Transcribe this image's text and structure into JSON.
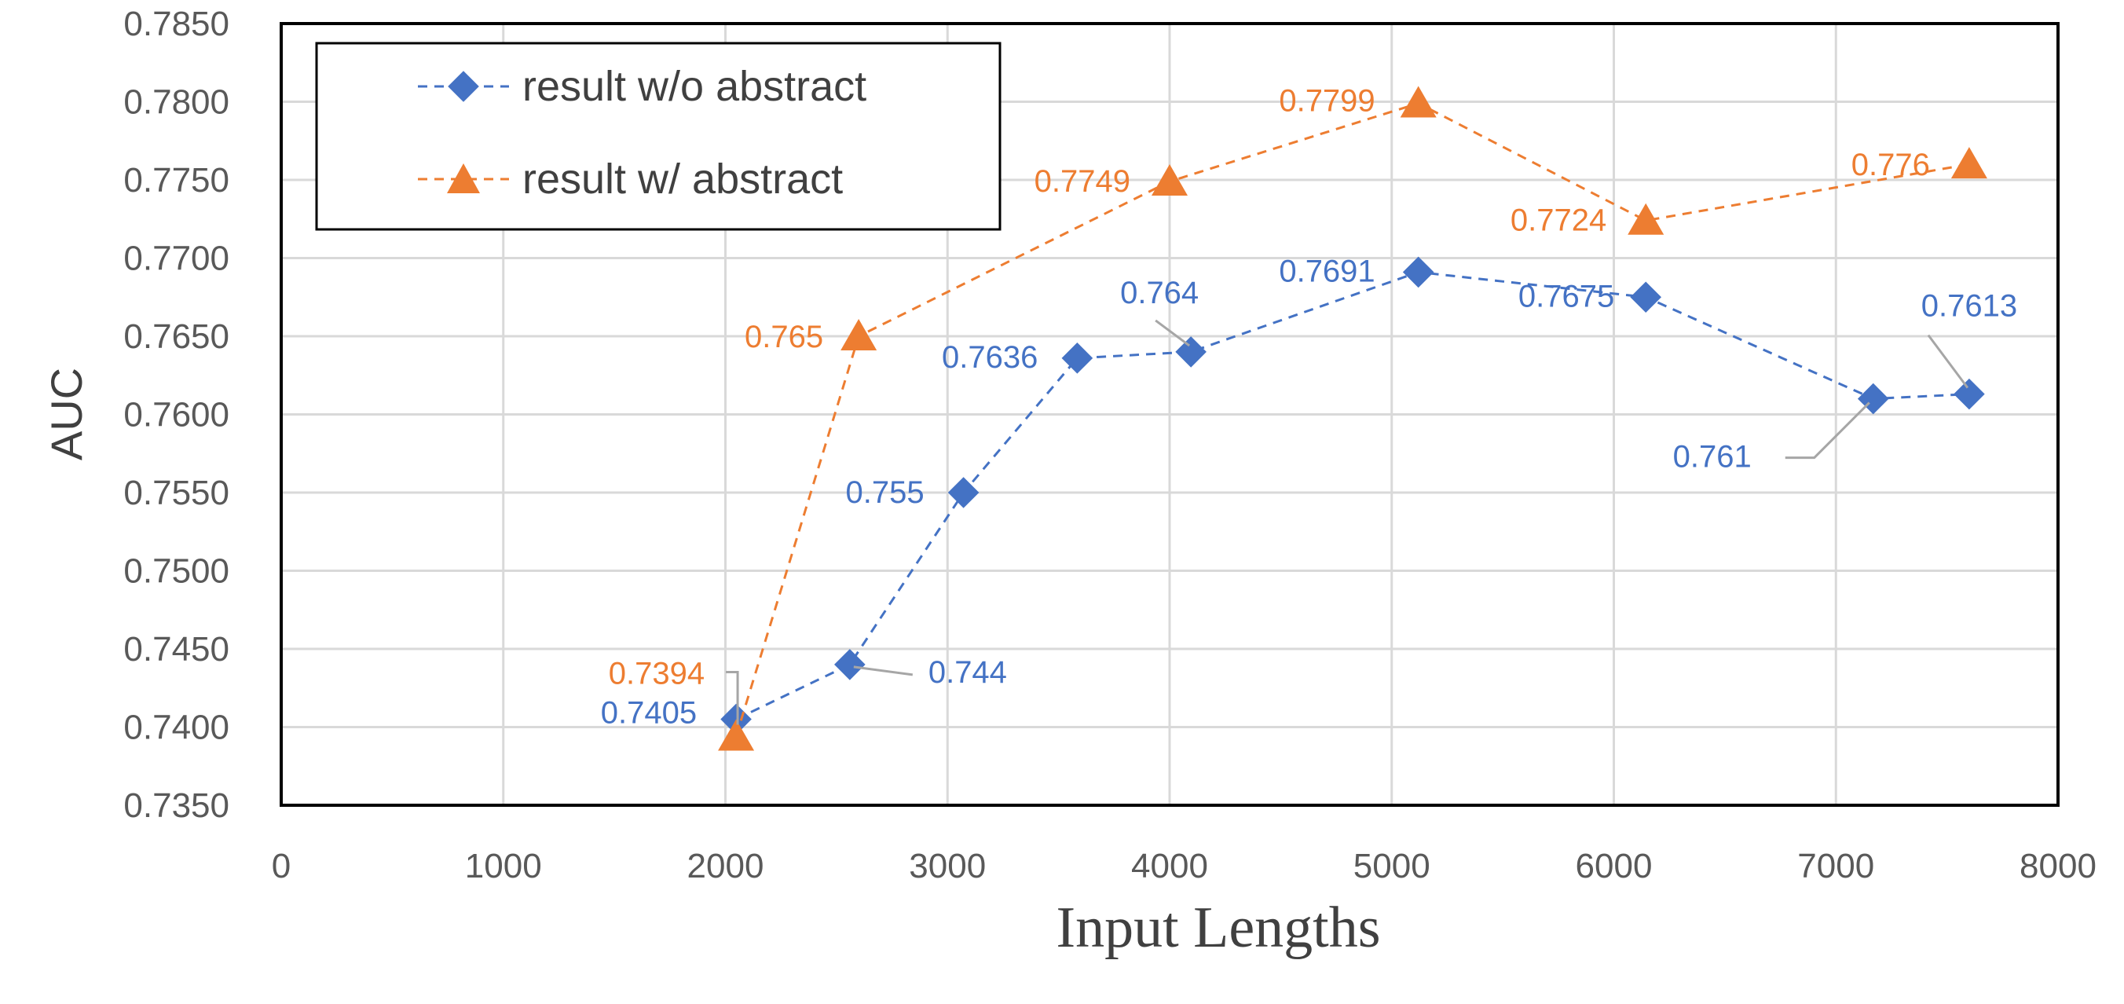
{
  "chart_data": {
    "type": "line",
    "title": "",
    "xlabel": "Input Lengths",
    "ylabel": "AUC",
    "xlim": [
      0,
      8000
    ],
    "ylim": [
      0.735,
      0.785
    ],
    "x_ticks": [
      "0",
      "1000",
      "2000",
      "3000",
      "4000",
      "5000",
      "6000",
      "7000",
      "8000"
    ],
    "y_ticks": [
      "0.7350",
      "0.7400",
      "0.7450",
      "0.7500",
      "0.7550",
      "0.7600",
      "0.7650",
      "0.7700",
      "0.7750",
      "0.7800",
      "0.7850"
    ],
    "grid": true,
    "legend_position": "top-left",
    "series": [
      {
        "name": "result w/o abstract",
        "color": "#4472C4",
        "marker": "diamond",
        "line_style": "dashed",
        "x": [
          2048,
          2560,
          3072,
          3584,
          4096,
          5120,
          6144,
          7168,
          7600
        ],
        "y": [
          0.7405,
          0.744,
          0.755,
          0.7636,
          0.764,
          0.7691,
          0.7675,
          0.761,
          0.7613
        ],
        "labels": [
          "0.7405",
          "0.744",
          "0.755",
          "0.7636",
          "0.764",
          "0.7691",
          "0.7675",
          "0.761",
          "0.7613"
        ]
      },
      {
        "name": "result w/ abstract",
        "color": "#ED7D31",
        "marker": "triangle",
        "line_style": "dashed",
        "x": [
          2048,
          2600,
          4000,
          5120,
          6144,
          7600
        ],
        "y": [
          0.7394,
          0.765,
          0.7749,
          0.7799,
          0.7724,
          0.776
        ],
        "labels": [
          "0.7394",
          "0.765",
          "0.7749",
          "0.7799",
          "0.7724",
          "0.776"
        ]
      }
    ]
  }
}
